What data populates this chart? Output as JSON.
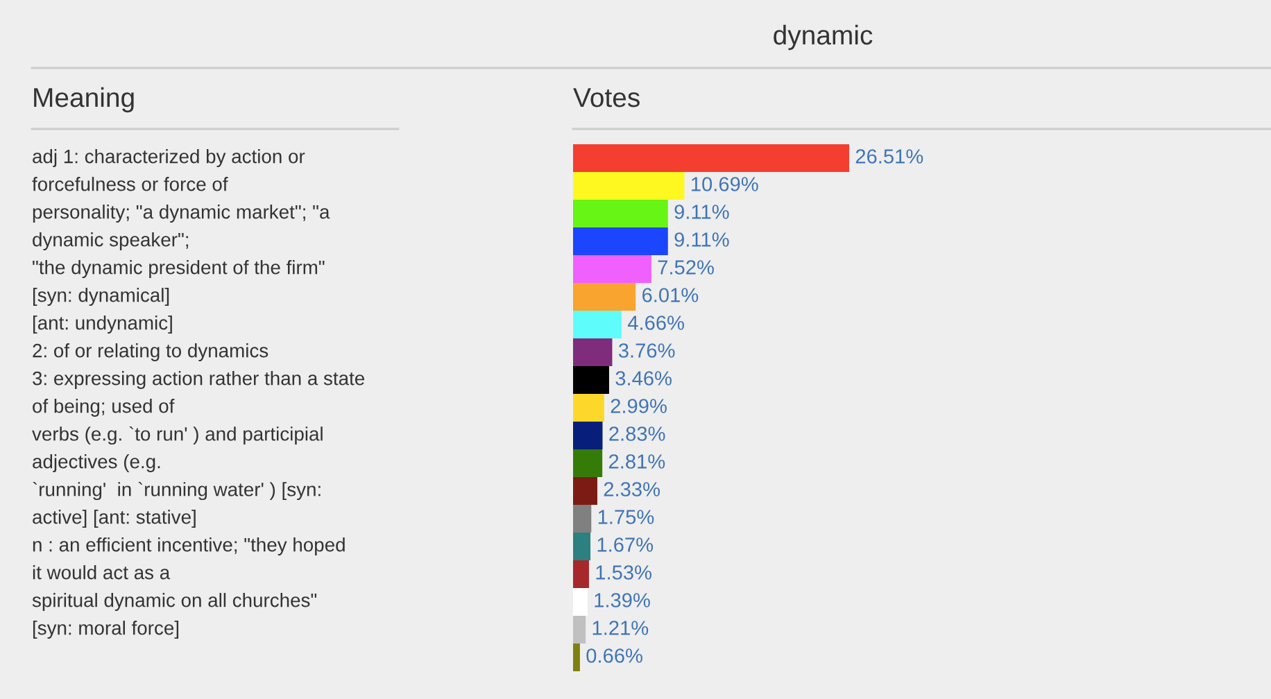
{
  "chart_data": [
    {
      "type": "other",
      "title": "Meaning",
      "annotations": [
        "adj 1: characterized by action or",
        "forcefulness or force of",
        "personality; \"a dynamic market\"; \"a",
        "dynamic speaker\";",
        "\"the dynamic president of the firm\"",
        "[syn: dynamical]",
        "[ant: undynamic]",
        "2: of or relating to dynamics",
        "3: expressing action rather than a state",
        "of being; used of",
        "verbs (e.g. `to run' ) and participial",
        "adjectives (e.g.",
        "`running'  in `running water' ) [syn:",
        "active] [ant: stative]",
        "n : an efficient incentive; \"they hoped",
        "it would act as a",
        "spiritual dynamic on all churches\"",
        "[syn: moral force]"
      ]
    },
    {
      "type": "bar",
      "orientation": "horizontal",
      "title": "dynamic",
      "subtitle": "Votes",
      "categories": [
        null,
        null,
        null,
        null,
        null,
        null,
        null,
        null,
        null,
        null,
        null,
        null,
        null,
        null,
        null,
        null,
        null,
        null,
        null
      ],
      "values": [
        26.51,
        10.69,
        9.11,
        9.11,
        7.52,
        6.01,
        4.66,
        3.76,
        3.46,
        2.99,
        2.83,
        2.81,
        2.33,
        1.75,
        1.67,
        1.53,
        1.39,
        1.21,
        0.66
      ],
      "value_labels": [
        "26.51%",
        "10.69%",
        "9.11%",
        "9.11%",
        "7.52%",
        "6.01%",
        "4.66%",
        "3.76%",
        "3.46%",
        "2.99%",
        "2.83%",
        "2.81%",
        "2.33%",
        "1.75%",
        "1.67%",
        "1.53%",
        "1.39%",
        "1.21%",
        "0.66%"
      ],
      "colors": [
        "#f43e30",
        "#fff820",
        "#66f514",
        "#1c46fd",
        "#f060fe",
        "#f8a42e",
        "#5ffcfc",
        "#7f2c7c",
        "#000000",
        "#fdd82a",
        "#071f7b",
        "#347c07",
        "#7c1b14",
        "#808080",
        "#2c807f",
        "#a6282b",
        "#ffffff",
        "#c0c0c0",
        "#808010"
      ]
    }
  ]
}
